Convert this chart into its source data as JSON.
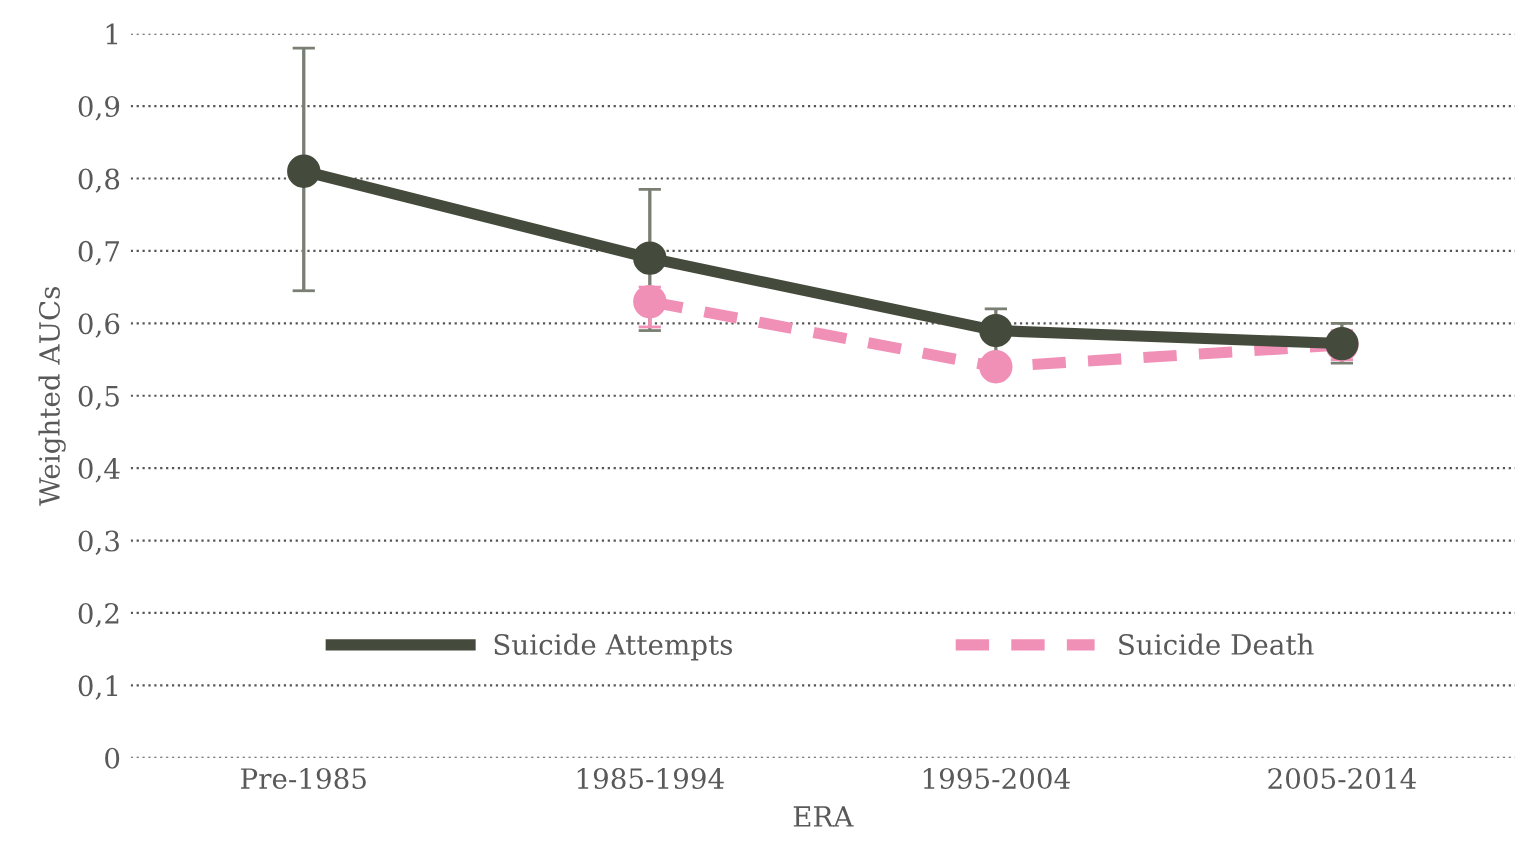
{
  "chart_data": {
    "type": "line",
    "xlabel": "ERA",
    "ylabel": "Weighted AUCs",
    "categories": [
      "Pre-1985",
      "1985-1994",
      "1995-2004",
      "2005-2014"
    ],
    "series": [
      {
        "name": "Suicide Attempts",
        "color": "#454b3c",
        "values": [
          0.81,
          0.69,
          0.59,
          0.572
        ],
        "errors": [
          [
            0.645,
            0.98
          ],
          [
            0.59,
            0.785
          ],
          [
            0.555,
            0.62
          ],
          [
            0.545,
            0.6
          ]
        ],
        "line_style": "solid"
      },
      {
        "name": "Suicide Death",
        "color": "#f190b7",
        "values": [
          null,
          0.63,
          0.54,
          0.57
        ],
        "errors": [
          null,
          [
            0.595,
            0.65
          ],
          [
            0.525,
            0.555
          ],
          [
            0.55,
            0.59
          ]
        ],
        "line_style": "dashed"
      }
    ],
    "ylim": [
      0,
      1
    ],
    "yticks": [
      0,
      {
        "value": 0.1,
        "label": "0,1"
      },
      {
        "value": 0.2,
        "label": "0,2"
      },
      {
        "value": 0.3,
        "label": "0,3"
      },
      {
        "value": 0.4,
        "label": "0,4"
      },
      {
        "value": 0.5,
        "label": "0,5"
      },
      {
        "value": 0.6,
        "label": "0,6"
      },
      {
        "value": 0.7,
        "label": "0,7"
      },
      {
        "value": 0.8,
        "label": "0,8"
      },
      {
        "value": 0.9,
        "label": "0,9"
      },
      1
    ],
    "grid": "y",
    "legend": "bottom",
    "marker": "circle"
  }
}
